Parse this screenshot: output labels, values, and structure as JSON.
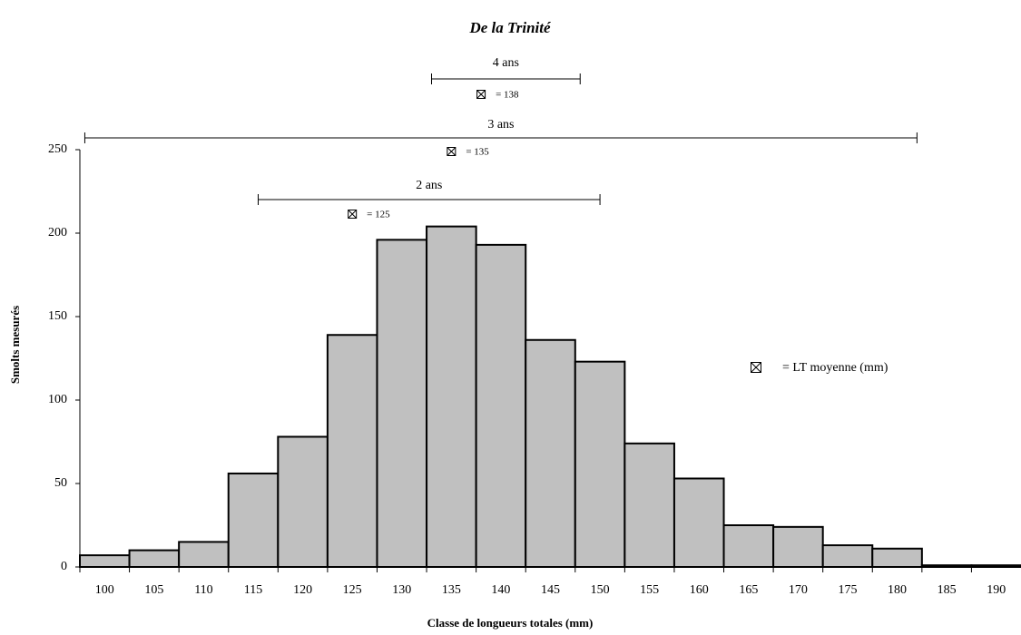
{
  "chart_data": {
    "type": "bar",
    "title": "De la Trinité",
    "y_label": "Smolts mesurés",
    "x_label": "Classe de longueurs totales (mm)",
    "categories": [
      "100",
      "105",
      "110",
      "115",
      "120",
      "125",
      "130",
      "135",
      "140",
      "145",
      "150",
      "155",
      "160",
      "165",
      "170",
      "175",
      "180",
      "185",
      "190"
    ],
    "values": [
      7,
      10,
      15,
      56,
      78,
      139,
      196,
      204,
      193,
      136,
      123,
      74,
      53,
      25,
      24,
      13,
      11,
      1,
      1
    ],
    "color": "#c0c0c0",
    "xlim": [
      97.5,
      192.5
    ],
    "ylim": [
      0,
      250
    ],
    "yticks": [
      0,
      50,
      100,
      150,
      200,
      250
    ],
    "annotations": [
      {
        "label": "4 ans",
        "range": [
          133,
          148
        ],
        "mean": 138,
        "mean_label": "= 138"
      },
      {
        "label": "3 ans",
        "range": [
          98,
          182
        ],
        "mean": 135,
        "mean_label": "= 135"
      },
      {
        "label": "2 ans",
        "range": [
          115.5,
          150
        ],
        "mean": 125,
        "mean_label": "= 125"
      }
    ],
    "legend_label": "= LT moyenne (mm)"
  }
}
